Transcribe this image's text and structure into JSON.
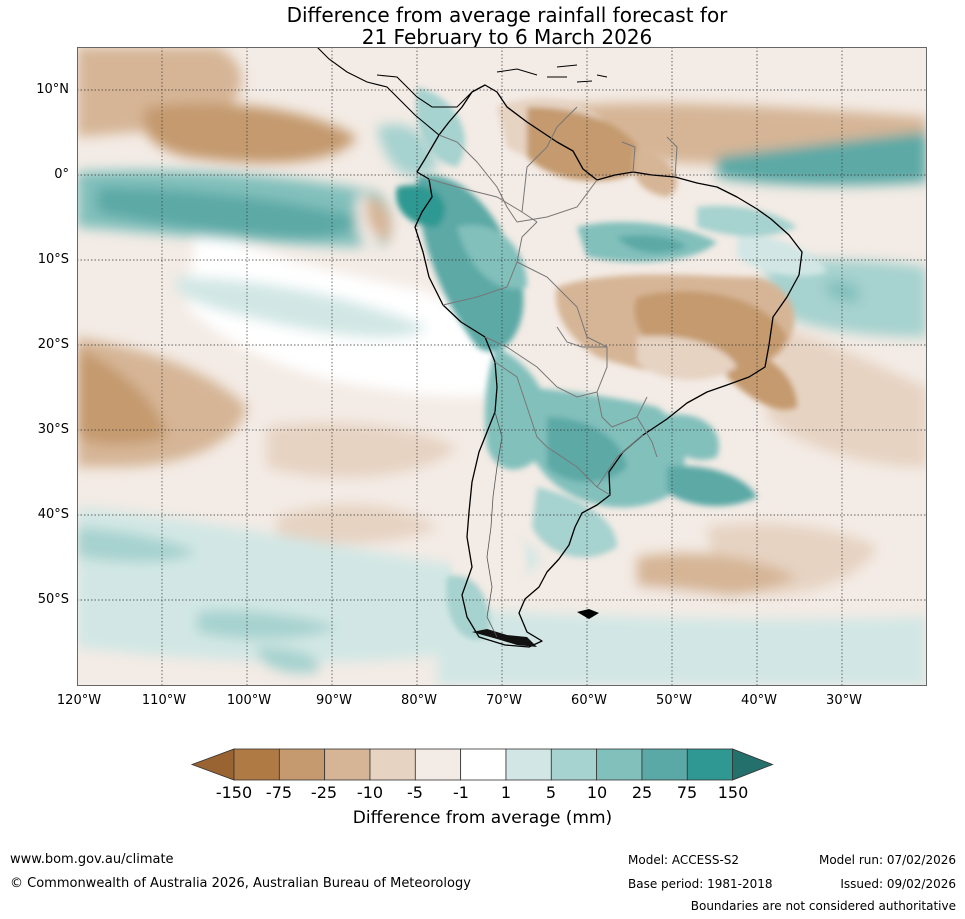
{
  "title": {
    "line1": "Difference from average rainfall forecast for",
    "line2": "21 February to 6 March 2026"
  },
  "map": {
    "lat_labels": [
      "10°N",
      "0°",
      "10°S",
      "20°S",
      "30°S",
      "40°S",
      "50°S"
    ],
    "lon_labels": [
      "120°W",
      "110°W",
      "100°W",
      "90°W",
      "80°W",
      "70°W",
      "60°W",
      "50°W",
      "40°W",
      "30°W"
    ]
  },
  "legend": {
    "ticks": [
      "-150",
      "-75",
      "-25",
      "-10",
      "-5",
      "-1",
      "1",
      "5",
      "10",
      "25",
      "75",
      "150"
    ],
    "colors": [
      "#9a6332",
      "#b07a44",
      "#c49a6e",
      "#d6b596",
      "#e6d3c2",
      "#f3ebe5",
      "#ffffff",
      "#d2e7e5",
      "#a6d2cf",
      "#82c0bc",
      "#5ba9a6",
      "#2f9892",
      "#24706c"
    ],
    "title": "Difference from average (mm)"
  },
  "footer": {
    "website": "www.bom.gov.au/climate",
    "copyright": "© Commonwealth of Australia 2026, Australian Bureau of Meteorology",
    "model": "Model: ACCESS-S2",
    "model_run": "Model run: 07/02/2026",
    "base_period": "Base period: 1981-2018",
    "issued": "Issued: 09/02/2026",
    "disclaimer": "Boundaries are not considered authoritative"
  }
}
